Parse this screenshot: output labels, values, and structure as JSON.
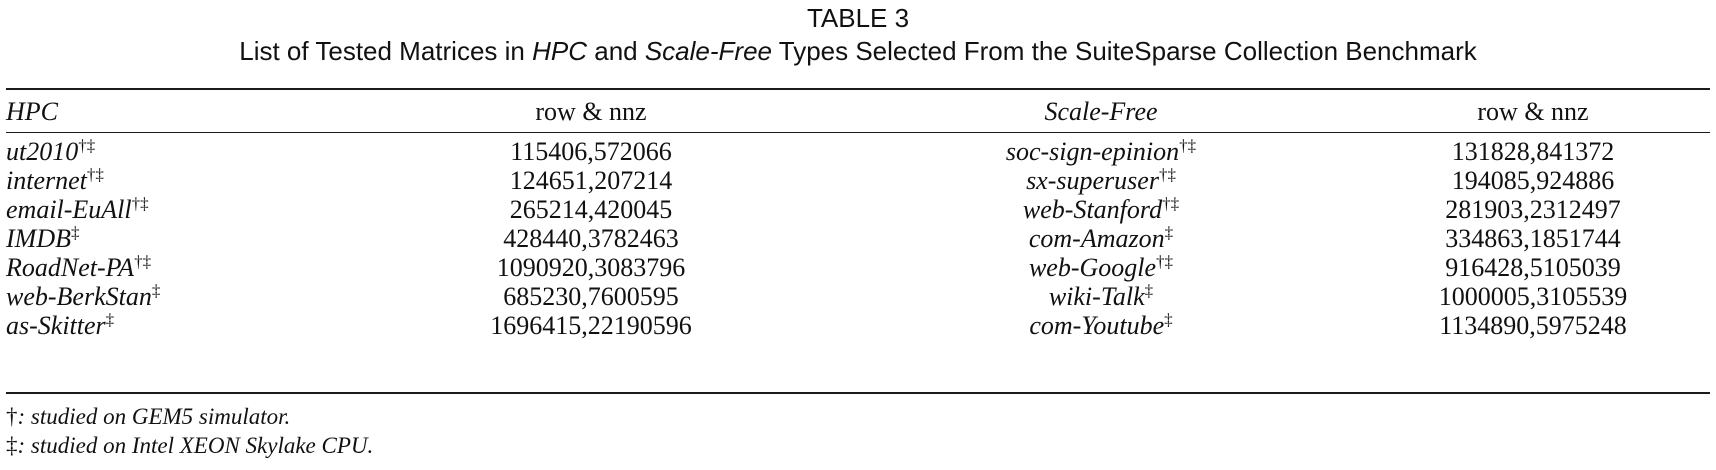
{
  "caption": {
    "label": "TABLE 3",
    "text_before": "List of Tested Matrices in ",
    "hpc": "HPC",
    "text_and": " and ",
    "scale_free": "Scale-Free",
    "text_after": " Types Selected From the SuiteSparse Collection Benchmark"
  },
  "headers": {
    "hpc": "HPC",
    "hpc_rownnz": "row & nnz",
    "scale_free": "Scale-Free",
    "sf_rownnz": "row & nnz"
  },
  "rows": [
    {
      "hpc_name": "ut2010",
      "hpc_mark": "†‡",
      "hpc_value": "115406,572066",
      "sf_name": "soc-sign-epinion",
      "sf_mark": "†‡",
      "sf_value": "131828,841372"
    },
    {
      "hpc_name": "internet",
      "hpc_mark": "†‡",
      "hpc_value": "124651,207214",
      "sf_name": "sx-superuser",
      "sf_mark": "†‡",
      "sf_value": "194085,924886"
    },
    {
      "hpc_name": "email-EuAll",
      "hpc_mark": "†‡",
      "hpc_value": "265214,420045",
      "sf_name": "web-Stanford",
      "sf_mark": "†‡",
      "sf_value": "281903,2312497"
    },
    {
      "hpc_name": "IMDB",
      "hpc_mark": "‡",
      "hpc_value": "428440,3782463",
      "sf_name": "com-Amazon",
      "sf_mark": "‡",
      "sf_value": "334863,1851744"
    },
    {
      "hpc_name": "RoadNet-PA",
      "hpc_mark": "†‡",
      "hpc_value": "1090920,3083796",
      "sf_name": "web-Google",
      "sf_mark": "†‡",
      "sf_value": "916428,5105039"
    },
    {
      "hpc_name": "web-BerkStan",
      "hpc_mark": "‡",
      "hpc_value": "685230,7600595",
      "sf_name": "wiki-Talk",
      "sf_mark": "‡",
      "sf_value": "1000005,3105539"
    },
    {
      "hpc_name": "as-Skitter",
      "hpc_mark": "‡",
      "hpc_value": "1696415,22190596",
      "sf_name": "com-Youtube",
      "sf_mark": "‡",
      "sf_value": "1134890,5975248"
    }
  ],
  "notes": [
    {
      "mark": "†",
      "text": ": studied on GEM5 simulator."
    },
    {
      "mark": "‡",
      "text": ": studied on Intel XEON Skylake CPU."
    }
  ]
}
